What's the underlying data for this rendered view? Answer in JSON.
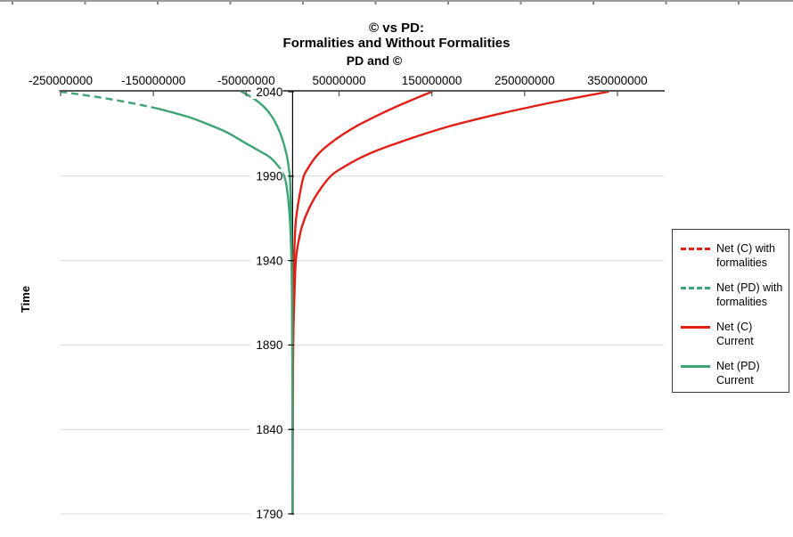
{
  "chart_data": {
    "type": "line",
    "title": "© vs PD:",
    "subtitle": "Formalities and Without Formalities",
    "grid": "horizontal",
    "legend_position": "right",
    "x_axis": {
      "title": "PD and ©",
      "position": "top",
      "min": -250000000,
      "max": 400000000,
      "ticks": [
        -250000000,
        -150000000,
        -50000000,
        50000000,
        150000000,
        250000000,
        350000000
      ],
      "tick_labels": [
        "-250000000",
        "-150000000",
        "-50000000",
        "50000000",
        "150000000",
        "250000000",
        "350000000"
      ]
    },
    "y_axis": {
      "title": "Time",
      "min": 1790,
      "max": 2040,
      "ticks": [
        2040,
        1990,
        1940,
        1890,
        1840,
        1790
      ],
      "tick_labels": [
        "2040",
        "1990",
        "1940",
        "1890",
        "1840",
        "1790"
      ]
    },
    "series": [
      {
        "name": "Net (C) with formalities",
        "color": "#e01f17",
        "legend_swatch": "dashed",
        "points": [
          [
            1790,
            0
          ],
          [
            1880,
            200000
          ],
          [
            1920,
            800000
          ],
          [
            1940,
            1500000
          ],
          [
            1960,
            3000000
          ],
          [
            1970,
            5000000
          ],
          [
            1980,
            8000000
          ],
          [
            1990,
            12000000
          ],
          [
            1995,
            17000000
          ],
          [
            2000,
            23000000
          ],
          [
            2005,
            31000000
          ],
          [
            2010,
            42000000
          ],
          [
            2015,
            55000000
          ],
          [
            2020,
            70000000
          ],
          [
            2025,
            88000000
          ],
          [
            2030,
            107000000
          ],
          [
            2035,
            128000000
          ],
          [
            2040,
            150000000
          ]
        ]
      },
      {
        "name": "Net (PD) with formalities",
        "color": "#3ea475",
        "legend_swatch": "dashed",
        "dash_from_year": 2030,
        "points": [
          [
            1790,
            0
          ],
          [
            1880,
            -300000
          ],
          [
            1920,
            -700000
          ],
          [
            1940,
            -1200000
          ],
          [
            1960,
            -2500000
          ],
          [
            1975,
            -4500000
          ],
          [
            1990,
            -9000000
          ],
          [
            2000,
            -22000000
          ],
          [
            2005,
            -36000000
          ],
          [
            2010,
            -52000000
          ],
          [
            2016,
            -71000000
          ],
          [
            2020,
            -88000000
          ],
          [
            2025,
            -112000000
          ],
          [
            2030,
            -145000000
          ],
          [
            2034,
            -180000000
          ],
          [
            2037,
            -212000000
          ],
          [
            2040,
            -250000000
          ]
        ]
      },
      {
        "name": "Net (C) Current",
        "color": "#e01f17",
        "legend_swatch": "solid",
        "points": [
          [
            1790,
            0
          ],
          [
            1850,
            200000
          ],
          [
            1880,
            500000
          ],
          [
            1900,
            1000000
          ],
          [
            1920,
            2000000
          ],
          [
            1940,
            3500000
          ],
          [
            1950,
            6000000
          ],
          [
            1960,
            10000000
          ],
          [
            1970,
            17000000
          ],
          [
            1980,
            27000000
          ],
          [
            1990,
            41000000
          ],
          [
            1995,
            54000000
          ],
          [
            2000,
            70000000
          ],
          [
            2005,
            90000000
          ],
          [
            2010,
            115000000
          ],
          [
            2015,
            142000000
          ],
          [
            2020,
            172000000
          ],
          [
            2025,
            208000000
          ],
          [
            2030,
            248000000
          ],
          [
            2035,
            292000000
          ],
          [
            2040,
            340000000
          ]
        ]
      },
      {
        "name": "Net (PD) Current",
        "color": "#3ea475",
        "legend_swatch": "solid",
        "points": [
          [
            1790,
            0
          ],
          [
            1880,
            -200000
          ],
          [
            1920,
            -500000
          ],
          [
            1940,
            -800000
          ],
          [
            1960,
            -1400000
          ],
          [
            1980,
            -2300000
          ],
          [
            1990,
            -3000000
          ],
          [
            2000,
            -5500000
          ],
          [
            2005,
            -7500000
          ],
          [
            2010,
            -10000000
          ],
          [
            2015,
            -13000000
          ],
          [
            2020,
            -17000000
          ],
          [
            2025,
            -22000000
          ],
          [
            2030,
            -29000000
          ],
          [
            2034,
            -37000000
          ],
          [
            2037,
            -45000000
          ],
          [
            2040,
            -55000000
          ]
        ]
      }
    ],
    "colors": {
      "red": "#e01f17",
      "green": "#3ea475",
      "gridline": "#d9d9d9",
      "value_axis": "#595959",
      "time_axis": "#000000"
    }
  }
}
